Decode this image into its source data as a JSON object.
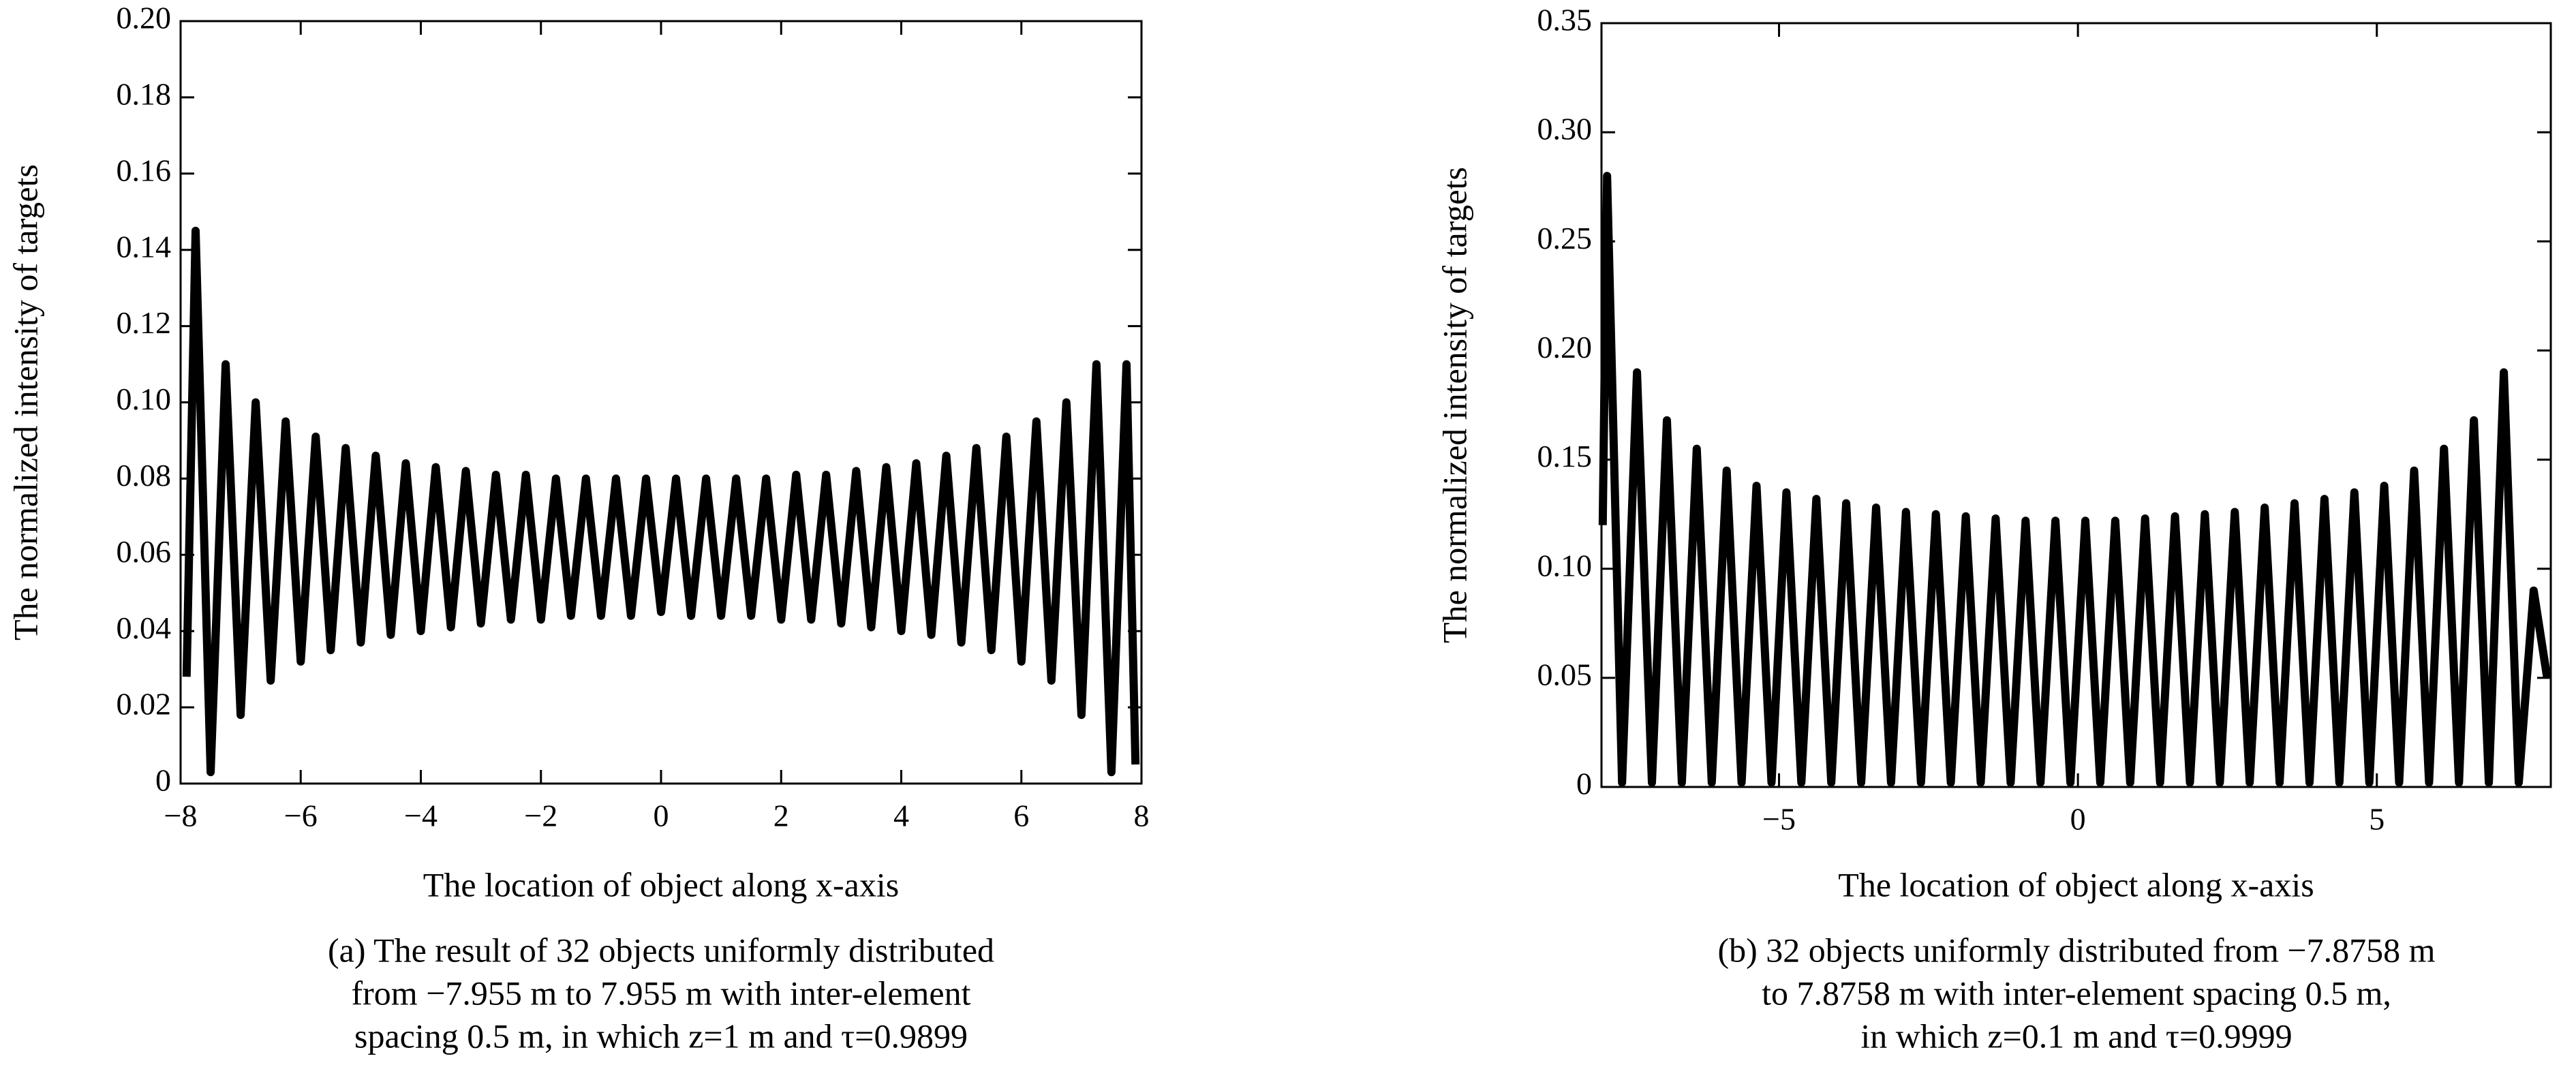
{
  "chart_data": [
    {
      "type": "line",
      "xlabel": "The location of object along x-axis",
      "ylabel": "The normalized intensity of targets",
      "caption": [
        "(a) The result of 32 objects uniformly distributed",
        "from −7.955 m to 7.955 m with inter-element",
        "spacing 0.5 m, in which z=1 m and τ=0.9899"
      ],
      "xlim": [
        -8,
        8
      ],
      "xticks": [
        {
          "value": -8,
          "label": "−8"
        },
        {
          "value": -6,
          "label": "−6"
        },
        {
          "value": -4,
          "label": "−4"
        },
        {
          "value": -2,
          "label": "−2"
        },
        0,
        2,
        4,
        6,
        8
      ],
      "ylim": [
        0,
        0.2
      ],
      "yticks": [
        0,
        0.02,
        0.04,
        0.06,
        0.08,
        {
          "value": 0.1,
          "label": "0.10"
        },
        0.12,
        0.14,
        0.16,
        0.18,
        {
          "value": 0.2,
          "label": "0.20"
        }
      ],
      "series": [
        {
          "color": "#000000",
          "x": [
            -7.9,
            -7.75,
            -7.5,
            -7.25,
            -7,
            -6.75,
            -6.5,
            -6.25,
            -6,
            -5.75,
            -5.5,
            -5.25,
            -5,
            -4.75,
            -4.5,
            -4.25,
            -4,
            -3.75,
            -3.5,
            -3.25,
            -3,
            -2.75,
            -2.5,
            -2.25,
            -2,
            -1.75,
            -1.5,
            -1.25,
            -1,
            -0.75,
            -0.5,
            -0.25,
            0,
            0.25,
            0.5,
            0.75,
            1,
            1.25,
            1.5,
            1.75,
            2,
            2.25,
            2.5,
            2.75,
            3,
            3.25,
            3.5,
            3.75,
            4,
            4.25,
            4.5,
            4.75,
            5,
            5.25,
            5.5,
            5.75,
            6,
            6.25,
            6.5,
            6.75,
            7,
            7.25,
            7.5,
            7.75,
            7.9
          ],
          "values": [
            0.028,
            0.145,
            0.003,
            0.11,
            0.018,
            0.1,
            0.027,
            0.095,
            0.032,
            0.091,
            0.035,
            0.088,
            0.037,
            0.086,
            0.039,
            0.084,
            0.04,
            0.083,
            0.041,
            0.082,
            0.042,
            0.081,
            0.043,
            0.081,
            0.043,
            0.08,
            0.044,
            0.08,
            0.044,
            0.08,
            0.044,
            0.08,
            0.045,
            0.08,
            0.044,
            0.08,
            0.044,
            0.08,
            0.044,
            0.08,
            0.043,
            0.081,
            0.043,
            0.081,
            0.042,
            0.082,
            0.041,
            0.083,
            0.04,
            0.084,
            0.039,
            0.086,
            0.037,
            0.088,
            0.035,
            0.091,
            0.032,
            0.095,
            0.027,
            0.1,
            0.018,
            0.11,
            0.003,
            0.11,
            0.005
          ]
        }
      ]
    },
    {
      "type": "line",
      "xlabel": "The location of object along x-axis",
      "ylabel": "The normalized intensity of targets",
      "caption": [
        "(b) 32 objects uniformly distributed from −7.8758 m",
        "to 7.8758 m with inter-element spacing 0.5 m,",
        "in which z=0.1 m and τ=0.9999"
      ],
      "xlim": [
        -7.97,
        7.91
      ],
      "xticks": [
        {
          "value": -5,
          "label": "−5"
        },
        0,
        5
      ],
      "ylim": [
        0,
        0.35
      ],
      "yticks": [
        0,
        0.05,
        {
          "value": 0.1,
          "label": "0.10"
        },
        0.15,
        {
          "value": 0.2,
          "label": "0.20"
        },
        0.25,
        {
          "value": 0.3,
          "label": "0.30"
        },
        0.35
      ],
      "series": [
        {
          "color": "#000000",
          "x": [
            -7.95,
            -7.876,
            -7.626,
            -7.376,
            -7.126,
            -6.876,
            -6.626,
            -6.376,
            -6.126,
            -5.876,
            -5.626,
            -5.376,
            -5.126,
            -4.876,
            -4.626,
            -4.376,
            -4.126,
            -3.876,
            -3.626,
            -3.376,
            -3.126,
            -2.876,
            -2.626,
            -2.376,
            -2.126,
            -1.876,
            -1.626,
            -1.376,
            -1.126,
            -0.876,
            -0.626,
            -0.376,
            -0.126,
            0.124,
            0.374,
            0.624,
            0.874,
            1.124,
            1.374,
            1.624,
            1.874,
            2.124,
            2.374,
            2.624,
            2.874,
            3.124,
            3.374,
            3.624,
            3.874,
            4.124,
            4.374,
            4.624,
            4.874,
            5.124,
            5.374,
            5.624,
            5.874,
            6.124,
            6.374,
            6.624,
            6.874,
            7.124,
            7.374,
            7.624,
            7.85
          ],
          "values": [
            0.12,
            0.28,
            0.002,
            0.19,
            0.002,
            0.168,
            0.002,
            0.155,
            0.002,
            0.145,
            0.002,
            0.138,
            0.002,
            0.135,
            0.002,
            0.132,
            0.002,
            0.13,
            0.002,
            0.128,
            0.002,
            0.126,
            0.002,
            0.125,
            0.002,
            0.124,
            0.002,
            0.123,
            0.002,
            0.122,
            0.002,
            0.122,
            0.002,
            0.122,
            0.002,
            0.122,
            0.002,
            0.123,
            0.002,
            0.124,
            0.002,
            0.125,
            0.002,
            0.126,
            0.002,
            0.128,
            0.002,
            0.13,
            0.002,
            0.132,
            0.002,
            0.135,
            0.002,
            0.138,
            0.002,
            0.145,
            0.002,
            0.155,
            0.002,
            0.168,
            0.002,
            0.19,
            0.002,
            0.09,
            0.05
          ]
        }
      ]
    }
  ]
}
